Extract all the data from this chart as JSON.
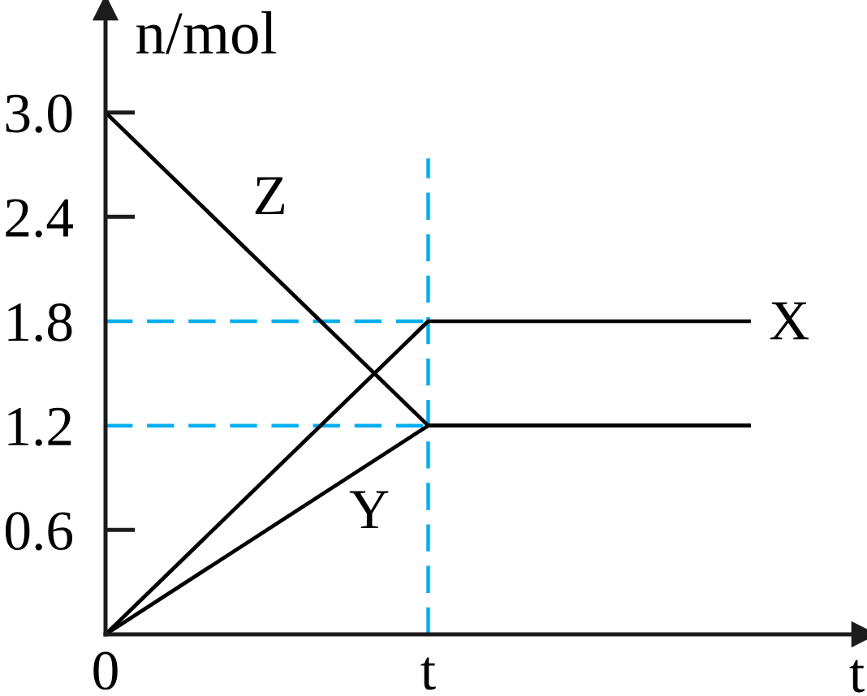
{
  "chart_data": {
    "type": "line",
    "ylabel": "n/mol",
    "xlabel": "t",
    "categories": [
      "0",
      "t",
      null
    ],
    "series": [
      {
        "name": "X",
        "color": "#000000",
        "values": [
          0,
          1.8,
          1.8
        ]
      },
      {
        "name": "Y",
        "color": "#000000",
        "values": [
          0,
          1.2,
          1.2
        ]
      },
      {
        "name": "Z",
        "color": "#000000",
        "values": [
          3.0,
          1.2,
          1.2
        ]
      }
    ],
    "ylim": [
      0,
      3.6
    ],
    "yticks": [
      0.6,
      1.2,
      1.8,
      2.4,
      {
        "value": 3.0,
        "label": "3.0"
      }
    ],
    "ref_lines": [
      {
        "axis": "y",
        "value": 1.8,
        "color": "#00aeef",
        "line_style": "dashed"
      },
      {
        "axis": "y",
        "value": 1.2,
        "color": "#00aeef",
        "line_style": "dashed"
      },
      {
        "axis": "x",
        "value": "t",
        "color": "#00aeef",
        "line_style": "dashed"
      }
    ],
    "line_style": "solid"
  }
}
